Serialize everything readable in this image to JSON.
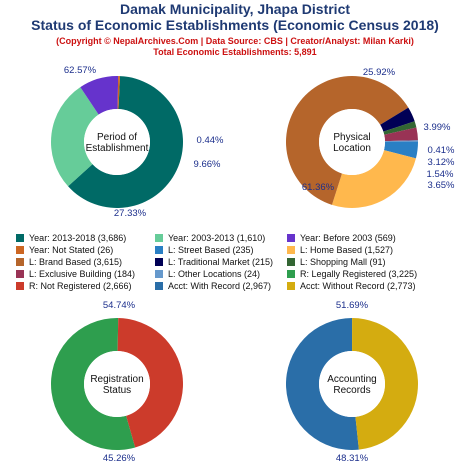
{
  "header": {
    "title_line1": "Damak Municipality, Jhapa District",
    "title_line2": "Status of Economic Establishments (Economic Census 2018)",
    "copyright": "(Copyright © NepalArchives.Com | Data Source: CBS | Creator/Analyst: Milan Karki)",
    "total": "Total Economic Establishments: 5,891"
  },
  "chart_data": [
    {
      "type": "pie",
      "center_label": [
        "Period of",
        "Establishment"
      ],
      "categories": [
        "Year: 2013-2018",
        "Year: 2003-2013",
        "Year: Before 2003",
        "Year: Not Stated"
      ],
      "values": [
        3686,
        1610,
        569,
        26
      ],
      "percent_labels": [
        "62.57%",
        "27.33%",
        "9.66%",
        "0.44%"
      ],
      "colors": [
        "#006a66",
        "#66cc99",
        "#6633cc",
        "#cc6622"
      ]
    },
    {
      "type": "pie",
      "center_label": [
        "Physical",
        "Location"
      ],
      "categories": [
        "L: Street Based",
        "L: Home Based",
        "L: Brand Based",
        "L: Traditional Market",
        "L: Shopping Mall",
        "L: Exclusive Building",
        "L: Other Locations"
      ],
      "values": [
        235,
        1527,
        3615,
        215,
        91,
        184,
        24
      ],
      "percent_labels": [
        "3.99%",
        "25.92%",
        "61.36%",
        "3.65%",
        "1.54%",
        "3.12%",
        "0.41%"
      ],
      "colors": [
        "#2a7fc4",
        "#ffb84d",
        "#b5652b",
        "#000055",
        "#336633",
        "#993355",
        "#6699cc"
      ]
    },
    {
      "type": "pie",
      "center_label": [
        "Registration",
        "Status"
      ],
      "categories": [
        "R: Legally Registered",
        "R: Not Registered"
      ],
      "values": [
        3225,
        2666
      ],
      "percent_labels": [
        "54.74%",
        "45.26%"
      ],
      "colors": [
        "#2e9e4e",
        "#cc3b2b"
      ]
    },
    {
      "type": "pie",
      "center_label": [
        "Accounting",
        "Records"
      ],
      "categories": [
        "Acct: With Record",
        "Acct: Without Record"
      ],
      "values": [
        2967,
        2773
      ],
      "percent_labels": [
        "51.69%",
        "48.31%"
      ],
      "colors": [
        "#2a6ea8",
        "#d4ac10"
      ]
    }
  ],
  "legend": [
    {
      "label": "Year: 2013-2018 (3,686)",
      "color": "#006a66"
    },
    {
      "label": "Year: 2003-2013 (1,610)",
      "color": "#66cc99"
    },
    {
      "label": "Year: Before 2003 (569)",
      "color": "#6633cc"
    },
    {
      "label": "Year: Not Stated (26)",
      "color": "#cc6622"
    },
    {
      "label": "L: Street Based (235)",
      "color": "#2a7fc4"
    },
    {
      "label": "L: Home Based (1,527)",
      "color": "#ffb84d"
    },
    {
      "label": "L: Brand Based (3,615)",
      "color": "#b5652b"
    },
    {
      "label": "L: Traditional Market (215)",
      "color": "#000055"
    },
    {
      "label": "L: Shopping Mall (91)",
      "color": "#336633"
    },
    {
      "label": "L: Exclusive Building (184)",
      "color": "#993355"
    },
    {
      "label": "L: Other Locations (24)",
      "color": "#6699cc"
    },
    {
      "label": "R: Legally Registered (3,225)",
      "color": "#2e9e4e"
    },
    {
      "label": "R: Not Registered (2,666)",
      "color": "#cc3b2b"
    },
    {
      "label": "Acct: With Record (2,967)",
      "color": "#2a6ea8"
    },
    {
      "label": "Acct: Without Record (2,773)",
      "color": "#d4ac10"
    }
  ]
}
